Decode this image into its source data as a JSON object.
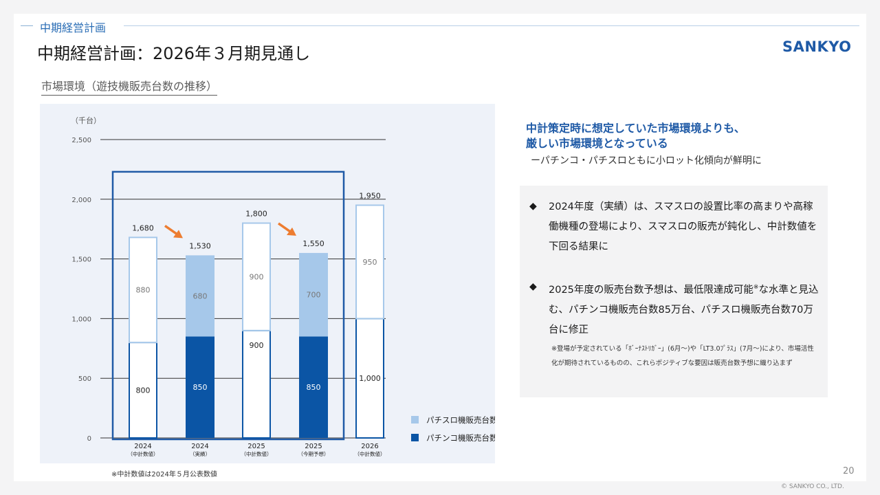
{
  "header": {
    "section_tag": "中期経営計画",
    "page_title": "中期経営計画：2026年３月期見通し",
    "logo_text": "SANKYO"
  },
  "subtitle": "市場環境（遊技機販売台数の推移）",
  "chart_data": {
    "type": "bar",
    "stacked": true,
    "ylabel": "（千台）",
    "ylim": [
      0,
      2500
    ],
    "yticks": [
      0,
      500,
      1000,
      1500,
      2000,
      2500
    ],
    "grid": true,
    "legend_position": "bottom-right",
    "categories": [
      {
        "year": "2024",
        "sub": "（中計数値）"
      },
      {
        "year": "2024",
        "sub": "（実績）"
      },
      {
        "year": "2025",
        "sub": "（中計数値）"
      },
      {
        "year": "2025",
        "sub": "（今期予想）"
      },
      {
        "year": "2026",
        "sub": "（中計数値）"
      }
    ],
    "series": [
      {
        "name": "パチンコ機販売台数",
        "values": [
          800,
          850,
          900,
          850,
          1000
        ]
      },
      {
        "name": "パチスロ機販売台数",
        "values": [
          880,
          680,
          900,
          700,
          950
        ]
      }
    ],
    "totals": [
      1680,
      1530,
      1800,
      1550,
      1950
    ],
    "value_labels": {
      "pachinko": [
        "800",
        "850",
        "900",
        "850",
        "1,000"
      ],
      "pachislot": [
        "880",
        "680",
        "900",
        "700",
        "950"
      ],
      "totals": [
        "1,680",
        "1,530",
        "1,800",
        "1,550",
        "1,950"
      ]
    },
    "ytick_labels": [
      "0",
      "500",
      "1,000",
      "1,500",
      "2,000",
      "2,500"
    ],
    "outlined_bars": [
      0,
      2,
      4
    ],
    "highlight_group": [
      0,
      1,
      2,
      3
    ],
    "decline_arrows_before": [
      1,
      3
    ],
    "colors": {
      "pachinko": "#0b55a5",
      "pachislot": "#a6c8ea",
      "outline_pachinko": "#0b55a5",
      "outline_pachislot": "#a6c8ea",
      "highlight_box": "#1f5aa6",
      "arrow": "#ed7d31"
    }
  },
  "chart_note": "※中計数値は2024年５月公表数値",
  "headline": {
    "line1": "中計策定時に想定していた市場環境よりも、",
    "line2": "厳しい市場環境となっている",
    "sub": "ーパチンコ・パチスロともに小ロット化傾向が鮮明に"
  },
  "notes": {
    "bullet_glyph": "◆",
    "bullet1": "2024年度（実績）は、スマスロの設置比率の高まりや高稼働機種の登場により、スマスロの販売が鈍化し、中計数値を下回る結果に",
    "bullet2_before": "2025年度の販売台数予想は、最低限達成可能",
    "bullet2_mark": "※",
    "bullet2_after": "な水準と見込む、パチンコ機販売台数85万台、パチスロ機販売台数70万台に修正",
    "fine_print": "※登場が予定されている「ﾎﾞｰﾅｽﾄﾘｶﾞｰ」(6月～)や「LT3.0ﾌﾟﾗｽ」(7月～)により、市場活性化が期待されているものの、これらポジティブな要因は販売台数予想に織り込まず"
  },
  "footer": {
    "page_number": "20",
    "copyright": "© SANKYO CO., LTD."
  }
}
